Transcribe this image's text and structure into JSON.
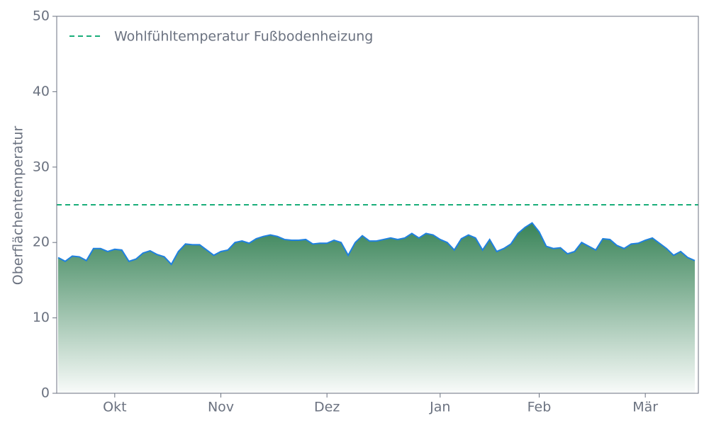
{
  "chart_data": {
    "type": "area",
    "ylabel": "Oberflächentemperatur",
    "categories": [
      null,
      null,
      null,
      null,
      null,
      null,
      null,
      null,
      "Okt",
      null,
      null,
      null,
      null,
      null,
      null,
      null,
      null,
      null,
      null,
      null,
      null,
      null,
      null,
      "Nov",
      null,
      null,
      null,
      null,
      null,
      null,
      null,
      null,
      null,
      null,
      null,
      null,
      null,
      null,
      "Dez",
      null,
      null,
      null,
      null,
      null,
      null,
      null,
      null,
      null,
      null,
      null,
      null,
      null,
      null,
      null,
      "Jan",
      null,
      null,
      null,
      null,
      null,
      null,
      null,
      null,
      null,
      null,
      null,
      null,
      null,
      "Feb",
      null,
      null,
      null,
      null,
      null,
      null,
      null,
      null,
      null,
      null,
      null,
      null,
      null,
      null,
      "Mär",
      null,
      null,
      null,
      null,
      null,
      null,
      null
    ],
    "values": [
      18,
      17.5,
      18.2,
      18.1,
      17.6,
      19.2,
      19.2,
      18.8,
      19.1,
      19.0,
      17.5,
      17.8,
      18.6,
      18.9,
      18.4,
      18.1,
      17.1,
      18.8,
      19.8,
      19.7,
      19.7,
      19.0,
      18.3,
      18.8,
      19.0,
      20.0,
      20.2,
      19.9,
      20.5,
      20.8,
      21.0,
      20.8,
      20.4,
      20.3,
      20.3,
      20.4,
      19.8,
      19.9,
      19.9,
      20.3,
      20.0,
      18.3,
      20.0,
      20.9,
      20.2,
      20.2,
      20.4,
      20.6,
      20.4,
      20.6,
      21.2,
      20.6,
      21.2,
      21.0,
      20.4,
      20.0,
      19.0,
      20.5,
      21.0,
      20.6,
      19.0,
      20.4,
      18.8,
      19.2,
      19.8,
      21.2,
      22.0,
      22.6,
      21.4,
      19.5,
      19.2,
      19.3,
      18.5,
      18.8,
      20.0,
      19.5,
      19.0,
      20.5,
      20.4,
      19.6,
      19.2,
      19.8,
      19.9,
      20.3,
      20.6,
      19.9,
      19.2,
      18.3,
      18.8,
      18.0,
      17.6
    ],
    "line_color": "#1f80e0",
    "fill_color": "#2e7d4f",
    "reference_line": {
      "name": "Wohlfühltemperatur Fußbodenheizung",
      "value": 25,
      "color": "#1aae7a"
    },
    "ylim": [
      0,
      50
    ],
    "yticks": [
      0,
      10,
      20,
      30,
      40,
      50
    ]
  }
}
